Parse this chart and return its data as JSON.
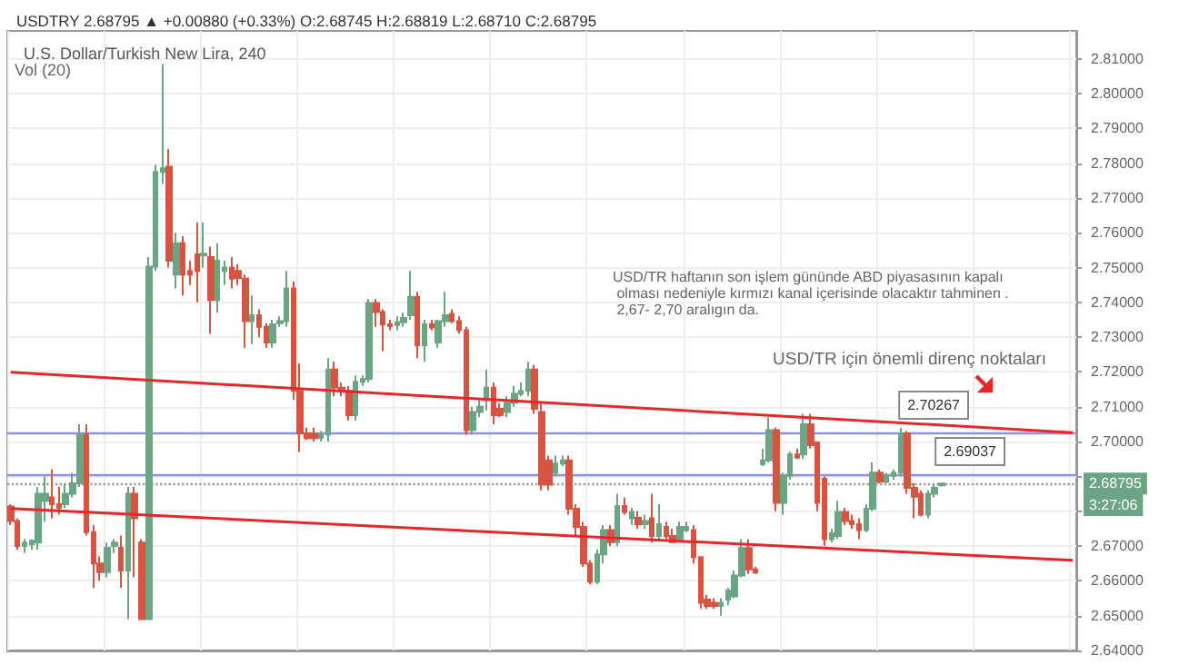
{
  "chart_data": {
    "type": "candlestick",
    "title": "U.S. Dollar/Turkish New Lira, 240",
    "subtitle": "USDTRY 2.68795 ▲ +0.00880 (+0.33%) O:2.68745 H:2.68819 L:2.68710 C:2.68795",
    "categories": [
      null,
      null,
      null,
      null,
      null,
      null,
      null,
      null,
      null,
      null,
      null,
      null,
      null,
      null,
      null,
      null,
      null,
      null,
      null,
      null,
      null,
      null,
      null,
      null,
      null,
      null,
      null,
      null,
      null,
      null,
      null,
      null,
      null,
      null,
      null,
      null,
      null,
      null,
      null,
      null,
      null,
      null,
      null,
      null,
      null,
      null,
      null,
      null,
      null,
      null,
      null,
      null,
      null,
      null,
      null,
      null,
      null,
      null,
      null,
      null,
      null,
      null,
      null,
      null,
      null,
      null,
      null,
      null,
      null,
      null,
      null,
      null,
      null,
      null,
      null,
      null,
      null,
      null,
      null,
      null,
      null,
      null,
      null,
      null,
      null,
      null,
      null,
      null,
      null,
      null,
      null,
      null,
      null,
      null,
      null,
      null,
      null,
      null,
      null,
      null,
      null,
      null,
      null,
      null,
      null,
      null,
      null,
      null,
      null,
      null,
      null,
      null,
      null,
      null,
      null,
      null,
      null,
      null,
      null,
      null,
      null,
      null,
      null,
      null,
      null,
      null,
      null,
      null,
      null,
      null,
      null,
      null,
      null,
      null,
      null,
      null,
      null,
      null,
      null,
      null,
      null,
      null,
      null,
      null,
      null,
      null,
      null,
      null,
      null,
      null,
      null,
      null,
      null,
      null,
      null
    ],
    "colors": [
      "#d75442",
      "#d75442",
      "#6ba583",
      "#6ba583",
      "#6ba583",
      "#6ba583",
      "#d75442",
      "#d75442",
      "#6ba583",
      "#6ba583",
      "#6ba583",
      "#d75442",
      "#d75442",
      "#d75442",
      "#6ba583",
      "#6ba583",
      "#d75442",
      "#6ba583",
      "#d75442",
      "#d75442",
      "#6ba583",
      "#6ba583",
      "#6ba583",
      "#d75442",
      "#6ba583",
      "#d75442",
      "#d75442",
      "#d75442",
      "#6ba583",
      "#d75442",
      "#6ba583",
      "#6ba583",
      "#d75442",
      "#d75442",
      "#d75442",
      "#6ba583",
      "#d75442",
      "#d75442",
      "#6ba583",
      "#6ba583",
      "#6ba583",
      "#d75442",
      "#d75442",
      "#d75442",
      "#d75442",
      "#6ba583",
      "#6ba583",
      "#d75442",
      "#d75442",
      "#d75442",
      "#6ba583",
      "#6ba583",
      "#6ba583",
      "#d75442",
      "#d75442",
      "#d75442",
      "#6ba583",
      "#6ba583",
      "#6ba583",
      "#d75442",
      "#6ba583",
      "#d75442",
      "#6ba583",
      "#6ba583",
      "#d75442",
      "#d75442",
      "#d75442",
      "#6ba583",
      "#6ba583",
      "#6ba583",
      "#d75442",
      "#d75442",
      "#6ba583",
      "#6ba583",
      "#6ba583",
      "#6ba583",
      "#d75442",
      "#d75442",
      "#d75442",
      "#6ba583",
      "#6ba583",
      "#d75442",
      "#d75442",
      "#d75442",
      "#d75442",
      "#6ba583",
      "#6ba583",
      "#d75442",
      "#6ba583",
      "#d75442",
      "#6ba583",
      "#d75442",
      "#6ba583",
      "#d75442",
      "#6ba583",
      "#d75442",
      "#d75442",
      "#6ba583",
      "#6ba583",
      "#d75442",
      "#d75442",
      "#d75442",
      "#d75442",
      "#6ba583",
      "#6ba583",
      "#6ba583",
      "#6ba583",
      "#d75442",
      "#d75442",
      "#6ba583",
      "#6ba583",
      "#d75442",
      "#6ba583",
      "#6ba583",
      "#d75442",
      "#6ba583",
      "#d75442",
      "#d75442",
      "#d75442",
      "#6ba583",
      "#6ba583",
      "#d75442",
      "#d75442",
      "#d75442",
      "#6ba583",
      "#6ba583",
      "#d75442",
      "#6ba583",
      "#6ba583",
      "#6ba583",
      "#d75442",
      "#d75442",
      "#d75442",
      "#6ba583",
      "#6ba583",
      "#6ba583",
      null,
      null,
      null,
      null,
      null,
      null,
      null,
      null,
      null,
      null,
      null,
      null,
      null,
      null,
      null,
      null,
      null,
      null,
      null
    ],
    "ohlc": [
      [
        2.6814,
        2.682,
        2.676,
        2.6772
      ],
      [
        2.6772,
        2.678,
        2.669,
        2.67
      ],
      [
        2.67,
        2.672,
        2.668,
        2.671
      ],
      [
        2.6705,
        2.672,
        2.669,
        2.6715
      ],
      [
        2.671,
        2.687,
        2.669,
        2.685
      ],
      [
        2.683,
        2.69,
        2.677,
        2.685
      ],
      [
        2.684,
        2.692,
        2.678,
        2.682
      ],
      [
        2.682,
        2.687,
        2.679,
        2.681
      ],
      [
        2.682,
        2.688,
        2.681,
        2.685
      ],
      [
        2.685,
        2.691,
        2.684,
        2.688
      ],
      [
        2.688,
        2.705,
        2.687,
        2.702
      ],
      [
        2.702,
        2.705,
        2.673,
        2.674
      ],
      [
        2.674,
        2.676,
        2.658,
        2.665
      ],
      [
        2.665,
        2.667,
        2.66,
        2.6625
      ],
      [
        2.6625,
        2.671,
        2.661,
        2.6695
      ],
      [
        2.67,
        2.672,
        2.668,
        2.671
      ],
      [
        2.6695,
        2.673,
        2.658,
        2.663
      ],
      [
        2.663,
        2.687,
        2.649,
        2.685
      ],
      [
        2.685,
        2.687,
        2.661,
        2.678
      ],
      [
        2.671,
        2.672,
        2.649,
        2.649
      ],
      [
        2.649,
        2.753,
        2.649,
        2.7503
      ],
      [
        2.7503,
        2.7795,
        2.749,
        2.7775
      ],
      [
        2.7775,
        2.8085,
        2.774,
        2.7785
      ],
      [
        2.779,
        2.784,
        2.75,
        2.752
      ],
      [
        2.748,
        2.76,
        2.744,
        2.757
      ],
      [
        2.757,
        2.759,
        2.742,
        2.748
      ],
      [
        2.749,
        2.752,
        2.745,
        2.748
      ],
      [
        2.7538,
        2.763,
        2.74,
        2.749
      ],
      [
        2.7535,
        2.763,
        2.75,
        2.754
      ],
      [
        2.753,
        2.756,
        2.731,
        2.7407
      ],
      [
        2.7407,
        2.757,
        2.737,
        2.752
      ],
      [
        2.749,
        2.752,
        2.745,
        2.75
      ],
      [
        2.75,
        2.753,
        2.744,
        2.7468
      ],
      [
        2.749,
        2.751,
        2.745,
        2.747
      ],
      [
        2.7468,
        2.748,
        2.727,
        2.7346
      ],
      [
        2.7346,
        2.742,
        2.728,
        2.7363
      ],
      [
        2.7363,
        2.738,
        2.73,
        2.733
      ],
      [
        2.733,
        2.734,
        2.727,
        2.7285
      ],
      [
        2.7285,
        2.735,
        2.727,
        2.7337
      ],
      [
        2.734,
        2.736,
        2.733,
        2.7346
      ],
      [
        2.7346,
        2.749,
        2.733,
        2.744
      ],
      [
        2.744,
        2.746,
        2.712,
        2.7146
      ],
      [
        2.7146,
        2.7225,
        2.697,
        2.7024
      ],
      [
        2.7024,
        2.704,
        2.7005,
        2.701
      ],
      [
        2.7022,
        2.704,
        2.7,
        2.701
      ],
      [
        2.701,
        2.703,
        2.7,
        2.702
      ],
      [
        2.702,
        2.724,
        2.7,
        2.7207
      ],
      [
        2.7207,
        2.723,
        2.713,
        2.7155
      ],
      [
        2.7155,
        2.717,
        2.713,
        2.7146
      ],
      [
        2.7146,
        2.716,
        2.706,
        2.7076
      ],
      [
        2.7076,
        2.719,
        2.706,
        2.7172
      ],
      [
        2.7172,
        2.719,
        2.716,
        2.718
      ],
      [
        2.718,
        2.741,
        2.717,
        2.7398
      ],
      [
        2.7398,
        2.741,
        2.733,
        2.7372
      ],
      [
        2.7372,
        2.738,
        2.726,
        2.7337
      ],
      [
        2.7337,
        2.735,
        2.732,
        2.7332
      ],
      [
        2.7335,
        2.736,
        2.732,
        2.7343
      ],
      [
        2.7343,
        2.737,
        2.733,
        2.7355
      ],
      [
        2.7363,
        2.749,
        2.735,
        2.7416
      ],
      [
        2.7416,
        2.743,
        2.724,
        2.7277
      ],
      [
        2.7277,
        2.735,
        2.723,
        2.7337
      ],
      [
        2.7337,
        2.735,
        2.732,
        2.7328
      ],
      [
        2.7285,
        2.735,
        2.727,
        2.7346
      ],
      [
        2.7346,
        2.743,
        2.733,
        2.7363
      ],
      [
        2.7367,
        2.738,
        2.734,
        2.7346
      ],
      [
        2.7346,
        2.736,
        2.731,
        2.732
      ],
      [
        2.732,
        2.733,
        2.702,
        2.7033
      ],
      [
        2.7033,
        2.71,
        2.702,
        2.7085
      ],
      [
        2.7085,
        2.712,
        2.707,
        2.71
      ],
      [
        2.712,
        2.7207,
        2.709,
        2.7155
      ],
      [
        2.7155,
        2.717,
        2.705,
        2.7076
      ],
      [
        2.7094,
        2.711,
        2.707,
        2.7076
      ],
      [
        2.7085,
        2.713,
        2.707,
        2.7111
      ],
      [
        2.7111,
        2.716,
        2.71,
        2.7137
      ],
      [
        2.7137,
        2.717,
        2.713,
        2.7146
      ],
      [
        2.7146,
        2.723,
        2.713,
        2.7207
      ],
      [
        2.7207,
        2.722,
        2.708,
        2.7094
      ],
      [
        2.7085,
        2.711,
        2.686,
        2.6876
      ],
      [
        2.6946,
        2.696,
        2.686,
        2.6876
      ],
      [
        2.6911,
        2.696,
        2.69,
        2.6937
      ],
      [
        2.6937,
        2.696,
        2.693,
        2.6946
      ],
      [
        2.6946,
        2.696,
        2.679,
        2.6807
      ],
      [
        2.6807,
        2.682,
        2.673,
        2.6755
      ],
      [
        2.6755,
        2.677,
        2.664,
        2.665
      ],
      [
        2.665,
        2.666,
        2.659,
        2.6598
      ],
      [
        2.6598,
        2.669,
        2.659,
        2.6676
      ],
      [
        2.6676,
        2.676,
        2.665,
        2.6746
      ],
      [
        2.6746,
        2.676,
        2.67,
        2.6711
      ],
      [
        2.6711,
        2.685,
        2.67,
        2.6815
      ],
      [
        2.6815,
        2.684,
        2.679,
        2.6798
      ],
      [
        2.678,
        2.681,
        2.676,
        2.6798
      ],
      [
        2.6781,
        2.68,
        2.675,
        2.6763
      ],
      [
        2.6763,
        2.679,
        2.675,
        2.6772
      ],
      [
        2.678,
        2.685,
        2.671,
        2.6729
      ],
      [
        2.6729,
        2.682,
        2.672,
        2.6763
      ],
      [
        2.6755,
        2.677,
        2.672,
        2.6729
      ],
      [
        2.6729,
        2.675,
        2.671,
        2.6711
      ],
      [
        2.672,
        2.677,
        2.671,
        2.6755
      ],
      [
        2.6746,
        2.677,
        2.674,
        2.6755
      ],
      [
        2.6746,
        2.676,
        2.665,
        2.6668
      ],
      [
        2.6668,
        2.667,
        2.652,
        2.6537
      ],
      [
        2.6546,
        2.656,
        2.652,
        2.6528
      ],
      [
        2.6537,
        2.655,
        2.652,
        2.6528
      ],
      [
        2.6528,
        2.655,
        2.65,
        2.6537
      ],
      [
        2.6546,
        2.658,
        2.653,
        2.6572
      ],
      [
        2.6555,
        2.663,
        2.655,
        2.6615
      ],
      [
        2.6615,
        2.672,
        2.661,
        2.6694
      ],
      [
        2.6694,
        2.672,
        2.662,
        2.6633
      ],
      [
        2.6633,
        2.664,
        2.662,
        2.6624
      ],
      [
        2.6936,
        2.698,
        2.693,
        2.6946
      ],
      [
        2.6946,
        2.707,
        2.694,
        2.7033
      ],
      [
        2.7033,
        2.704,
        2.68,
        2.6824
      ],
      [
        2.6824,
        2.691,
        2.679,
        2.6902
      ],
      [
        2.6902,
        2.697,
        2.689,
        2.6963
      ],
      [
        2.6963,
        2.698,
        2.695,
        2.6954
      ],
      [
        2.6963,
        2.708,
        2.695,
        2.705
      ],
      [
        2.705,
        2.708,
        2.698,
        2.699
      ],
      [
        2.6998,
        2.7,
        2.68,
        2.6824
      ],
      [
        2.6893,
        2.69,
        2.67,
        2.672
      ],
      [
        2.672,
        2.675,
        2.671,
        2.6737
      ],
      [
        2.6729,
        2.683,
        2.672,
        2.6798
      ],
      [
        2.6798,
        2.681,
        2.676,
        2.6772
      ],
      [
        2.6772,
        2.679,
        2.675,
        2.6763
      ],
      [
        2.6763,
        2.678,
        2.672,
        2.6746
      ],
      [
        2.6746,
        2.682,
        2.674,
        2.6807
      ],
      [
        2.6807,
        2.694,
        2.68,
        2.6911
      ],
      [
        2.6911,
        2.692,
        2.688,
        2.6885
      ],
      [
        2.6885,
        2.691,
        2.688,
        2.6902
      ],
      [
        2.6902,
        2.692,
        2.689,
        2.6911
      ],
      [
        2.6911,
        2.704,
        2.69,
        2.7024
      ],
      [
        2.7024,
        2.703,
        2.685,
        2.6867
      ],
      [
        2.6867,
        2.688,
        2.678,
        2.6842
      ],
      [
        2.685,
        2.686,
        2.6785,
        2.679
      ],
      [
        2.679,
        2.686,
        2.678,
        2.685
      ],
      [
        2.685,
        2.688,
        2.684,
        2.6867
      ],
      [
        2.68745,
        2.68819,
        2.6871,
        2.68795
      ],
      null,
      null,
      null,
      null,
      null,
      null,
      null,
      null,
      null,
      null,
      null,
      null,
      null,
      null,
      null,
      null,
      null,
      null,
      null
    ],
    "series": [
      {
        "type": "line",
        "color": "#e8262a",
        "values": [
          2.7199,
          null,
          null,
          null,
          null,
          null,
          null,
          null,
          null,
          null,
          null,
          null,
          null,
          null,
          null,
          null,
          null,
          null,
          null,
          null,
          null,
          null,
          null,
          null,
          null,
          null,
          null,
          null,
          null,
          null,
          null,
          null,
          null,
          null,
          null,
          null,
          null,
          null,
          null,
          null,
          null,
          null,
          null,
          null,
          null,
          null,
          null,
          null,
          null,
          null,
          null,
          null,
          null,
          null,
          null,
          null,
          null,
          null,
          null,
          null,
          null,
          null,
          null,
          null,
          null,
          null,
          null,
          null,
          null,
          null,
          null,
          null,
          null,
          null,
          null,
          null,
          null,
          null,
          null,
          null,
          null,
          null,
          null,
          null,
          null,
          null,
          null,
          null,
          null,
          null,
          null,
          null,
          null,
          null,
          null,
          null,
          null,
          null,
          null,
          null,
          null,
          null,
          null,
          null,
          null,
          null,
          null,
          null,
          null,
          null,
          null,
          null,
          null,
          null,
          null,
          null,
          null,
          null,
          null,
          null,
          null,
          null,
          null,
          null,
          null,
          null,
          null,
          null,
          null,
          null,
          null,
          null,
          null,
          null,
          null,
          null,
          null,
          null,
          null,
          null,
          null,
          null,
          null,
          null,
          null,
          null,
          null,
          null,
          null,
          null,
          null,
          null,
          null,
          null,
          2.7026
        ]
      },
      {
        "type": "line",
        "color": "#e8262a",
        "values": [
          2.6808,
          null,
          null,
          null,
          null,
          null,
          null,
          null,
          null,
          null,
          null,
          null,
          null,
          null,
          null,
          null,
          null,
          null,
          null,
          null,
          null,
          null,
          null,
          null,
          null,
          null,
          null,
          null,
          null,
          null,
          null,
          null,
          null,
          null,
          null,
          null,
          null,
          null,
          null,
          null,
          null,
          null,
          null,
          null,
          null,
          null,
          null,
          null,
          null,
          null,
          null,
          null,
          null,
          null,
          null,
          null,
          null,
          null,
          null,
          null,
          null,
          null,
          null,
          null,
          null,
          null,
          null,
          null,
          null,
          null,
          null,
          null,
          null,
          null,
          null,
          null,
          null,
          null,
          null,
          null,
          null,
          null,
          null,
          null,
          null,
          null,
          null,
          null,
          null,
          null,
          null,
          null,
          null,
          null,
          null,
          null,
          null,
          null,
          null,
          null,
          null,
          null,
          null,
          null,
          null,
          null,
          null,
          null,
          null,
          null,
          null,
          null,
          null,
          null,
          null,
          null,
          null,
          null,
          null,
          null,
          null,
          null,
          null,
          null,
          null,
          null,
          null,
          null,
          null,
          null,
          null,
          null,
          null,
          null,
          null,
          null,
          null,
          null,
          null,
          null,
          null,
          null,
          null,
          null,
          null,
          null,
          null,
          null,
          null,
          null,
          null,
          null,
          null,
          null,
          2.6659
        ]
      }
    ],
    "ylim": [
      2.64,
      2.818
    ],
    "yticks": [
      {
        "value": 2.64,
        "label": "2.64000"
      },
      {
        "value": 2.65,
        "label": "2.65000"
      },
      {
        "value": 2.66,
        "label": "2.66000"
      },
      {
        "value": 2.67,
        "label": "2.67000"
      },
      {
        "value": 2.68,
        "label": null
      },
      {
        "value": 2.69,
        "label": null
      },
      {
        "value": 2.7,
        "label": "2.70000"
      },
      {
        "value": 2.71,
        "label": "2.71000"
      },
      {
        "value": 2.72,
        "label": "2.72000"
      },
      {
        "value": 2.73,
        "label": "2.73000"
      },
      {
        "value": 2.74,
        "label": "2.74000"
      },
      {
        "value": 2.75,
        "label": "2.75000"
      },
      {
        "value": 2.76,
        "label": "2.76000"
      },
      {
        "value": 2.77,
        "label": "2.77000"
      },
      {
        "value": 2.78,
        "label": "2.78000"
      },
      {
        "value": 2.79,
        "label": "2.79000"
      },
      {
        "value": 2.8,
        "label": "2.80000"
      },
      {
        "value": 2.81,
        "label": "2.81000"
      }
    ],
    "ref_lines": [
      {
        "axis": "y",
        "value": 2.70267,
        "label": "2.70267",
        "color": "#8a93e6",
        "line_style": "solid"
      },
      {
        "axis": "y",
        "value": 2.69037,
        "label": "2.69037",
        "color": "#8a93e6",
        "line_style": "solid"
      },
      {
        "axis": "y",
        "value": 2.68795,
        "label": "2.68795",
        "color": "#9aa0a6",
        "line_style": "dotted"
      }
    ],
    "annotations": [
      "Vol (20)",
      "USD/TR haftanın son işlem gününde ABD piyasasının kapalı\n olması nedeniyle kırmızı kanal içerisinde olacaktır tahminen .\n 2,67- 2,70 aralıgın da.",
      "USD/TR için önemli direnç noktaları",
      "3:27:06"
    ],
    "grid": true,
    "tick_labels": "y"
  }
}
